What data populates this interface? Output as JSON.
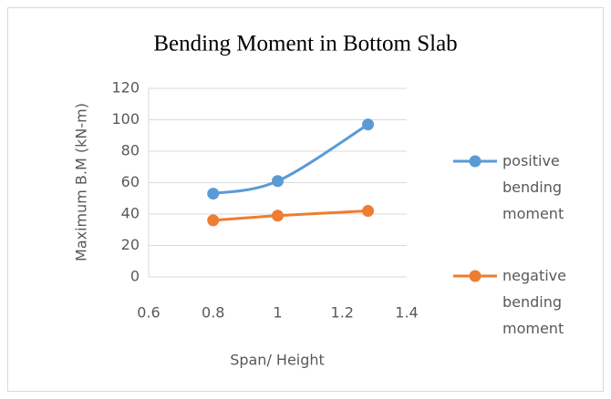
{
  "chart_data": {
    "type": "line",
    "title": "Bending Moment in Bottom Slab",
    "x_label": "Span/ Height",
    "y_label": "Maximum B.M (kN-m)",
    "x": [
      0.8,
      1.0,
      1.28
    ],
    "series": [
      {
        "name": "positive bending moment",
        "color": "#5b9bd5",
        "values": [
          53,
          61,
          97
        ]
      },
      {
        "name": "negative bending moment",
        "color": "#ed7d31",
        "values": [
          36,
          39,
          42
        ]
      }
    ],
    "xlim": [
      0.6,
      1.4
    ],
    "xticks": [
      0.6,
      0.8,
      1,
      1.2,
      1.4
    ],
    "ylim": [
      0,
      120
    ],
    "yticks": [
      0,
      20,
      40,
      60,
      80,
      100,
      120
    ],
    "grid": true,
    "smooth": true,
    "legend": "right"
  }
}
